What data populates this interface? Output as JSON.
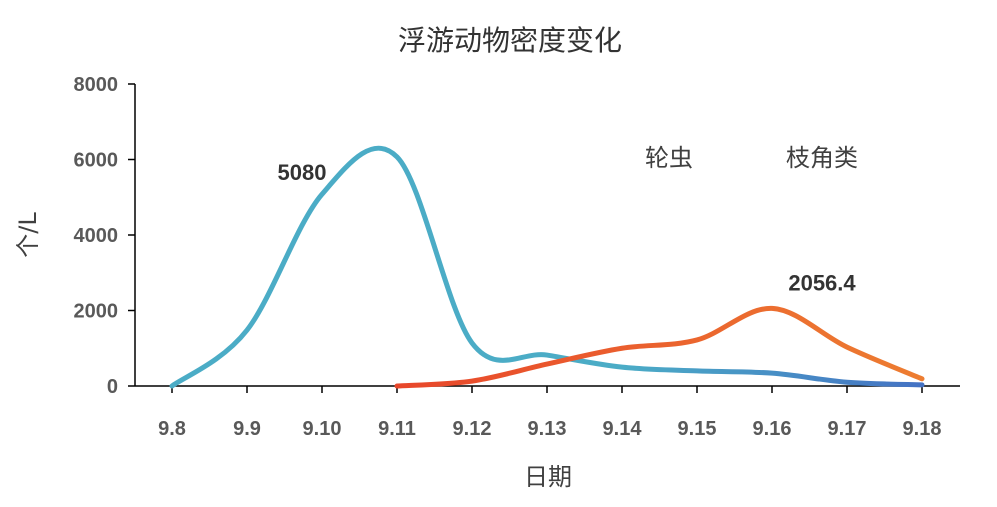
{
  "chart_data": {
    "type": "line",
    "title": "浮游动物密度变化",
    "xlabel": "日期",
    "ylabel": "个/L",
    "categories": [
      "9.8",
      "9.9",
      "9.10",
      "9.11",
      "9.12",
      "9.13",
      "9.14",
      "9.15",
      "9.16",
      "9.17",
      "9.18"
    ],
    "ylim": [
      0,
      8000
    ],
    "yticks": [
      "0",
      "2000",
      "4000",
      "6000",
      "8000"
    ],
    "grid": false,
    "legend_position": "top-right",
    "series": [
      {
        "name": "轮虫",
        "values": [
          0,
          1480,
          5080,
          6070,
          1140,
          820,
          500,
          400,
          340,
          100,
          30
        ],
        "color": "#4bacc6",
        "color_end": "#4472c4"
      },
      {
        "name": "枝角类",
        "values": [
          null,
          null,
          null,
          0,
          130,
          580,
          1000,
          1220,
          2056.4,
          1030,
          190
        ],
        "color": "#e8472b",
        "color_end": "#ed7d31"
      }
    ],
    "annotations": [
      {
        "series": 0,
        "index": 2,
        "text": "5080"
      },
      {
        "series": 1,
        "index": 8,
        "text": "2056.4"
      }
    ]
  }
}
